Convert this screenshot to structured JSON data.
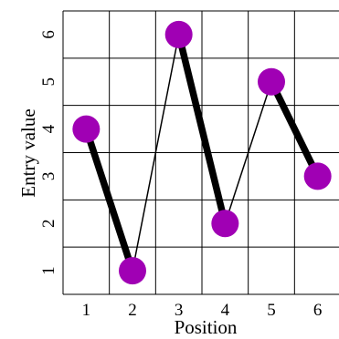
{
  "chart_data": {
    "type": "line",
    "title": "",
    "xlabel": "Position",
    "ylabel": "Entry value",
    "x": [
      1,
      2,
      3,
      4,
      5,
      6
    ],
    "values": [
      4,
      1,
      6,
      2,
      5,
      3
    ],
    "xticks": [
      "1",
      "2",
      "3",
      "4",
      "5",
      "6"
    ],
    "yticks": [
      "1",
      "2",
      "3",
      "4",
      "5",
      "6"
    ],
    "xlim": [
      0.5,
      6.5
    ],
    "ylim": [
      0.5,
      6.5
    ],
    "grid": true,
    "segments": [
      {
        "from": 1,
        "to": 2,
        "style": "thick"
      },
      {
        "from": 2,
        "to": 3,
        "style": "thin"
      },
      {
        "from": 3,
        "to": 4,
        "style": "thick"
      },
      {
        "from": 4,
        "to": 5,
        "style": "thin"
      },
      {
        "from": 5,
        "to": 6,
        "style": "thick"
      }
    ],
    "colors": {
      "marker": "#a000b4",
      "line": "#000000",
      "grid": "#000000"
    }
  }
}
